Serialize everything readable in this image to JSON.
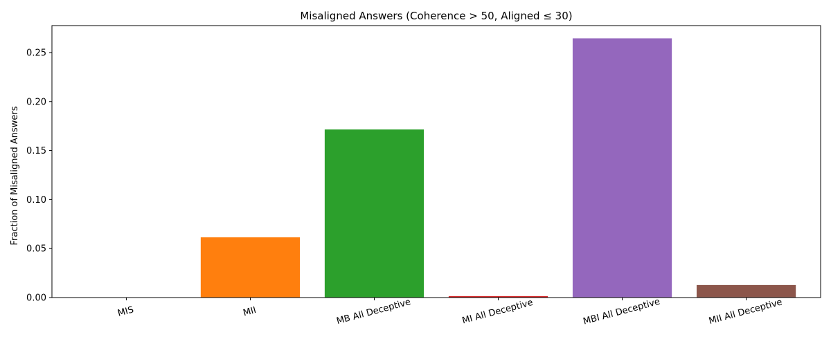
{
  "chart_data": {
    "type": "bar",
    "title": "Misaligned Answers (Coherence > 50, Aligned ≤ 30)",
    "xlabel": "",
    "ylabel": "Fraction of Misaligned Answers",
    "categories": [
      "MIS",
      "MII",
      "MB All Deceptive",
      "MI All Deceptive",
      "MBI All Deceptive",
      "MII All Deceptive"
    ],
    "values": [
      0.0,
      0.0615,
      0.1715,
      0.0015,
      0.2645,
      0.0128
    ],
    "colors": [
      "#1f77b4",
      "#ff7f0e",
      "#2ca02c",
      "#d62728",
      "#9467bd",
      "#8c564b"
    ],
    "ylim": [
      0,
      0.2775
    ],
    "yticks": [
      0.0,
      0.05,
      0.1,
      0.15,
      0.2,
      0.25
    ],
    "ytick_labels": [
      "0.00",
      "0.05",
      "0.10",
      "0.15",
      "0.20",
      "0.25"
    ],
    "grid": false,
    "legend": "none"
  }
}
